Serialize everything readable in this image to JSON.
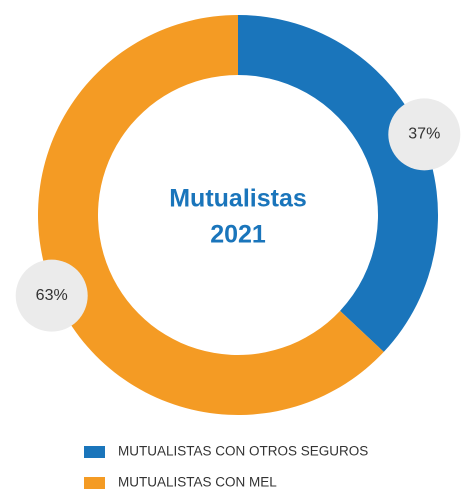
{
  "chart_data": {
    "type": "donut",
    "title": "Mutualistas",
    "subtitle": "2021",
    "categories": [
      "MUTUALISTAS CON OTROS SEGUROS",
      "MUTUALISTAS CON MEL"
    ],
    "values": [
      37,
      63
    ],
    "value_labels": [
      "37%",
      "63%"
    ],
    "colors": [
      "#1a75bb",
      "#f49b24"
    ],
    "legend": "bottom"
  }
}
